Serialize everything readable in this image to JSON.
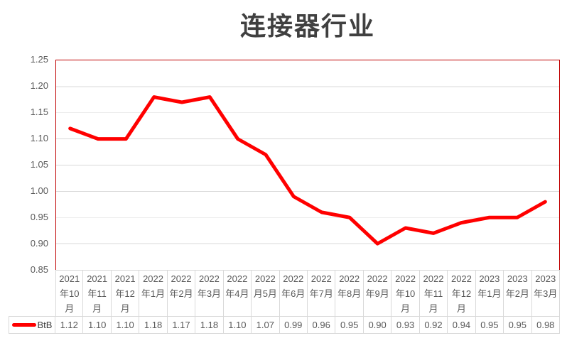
{
  "title": "连接器行业",
  "chart_data": {
    "type": "line",
    "title": "连接器行业",
    "categories": [
      "2021年10月",
      "2021年11月",
      "2021年12月",
      "2022年1月",
      "2022年2月",
      "2022年3月",
      "2022年4月",
      "2022月5月",
      "2022年6月",
      "2022年7月",
      "2022年8月",
      "2022年9月",
      "2022年10月",
      "2022年11月",
      "2022年12月",
      "2023年1月",
      "2023年2月",
      "2023年3月"
    ],
    "series": [
      {
        "name": "BtB",
        "values": [
          1.12,
          1.1,
          1.1,
          1.18,
          1.17,
          1.18,
          1.1,
          1.07,
          0.99,
          0.96,
          0.95,
          0.9,
          0.93,
          0.92,
          0.94,
          0.95,
          0.95,
          0.98
        ]
      }
    ],
    "xlabel": "",
    "ylabel": "",
    "ylim": [
      0.85,
      1.25
    ],
    "ytick_step": 0.05,
    "yticks": [
      "1.25",
      "1.20",
      "1.15",
      "1.10",
      "1.05",
      "1.00",
      "0.95",
      "0.90",
      "0.85"
    ],
    "grid": true,
    "legend_position": "data-table-left"
  },
  "data_table": {
    "legend_label": "BtB",
    "values": [
      "1.12",
      "1.10",
      "1.10",
      "1.18",
      "1.17",
      "1.18",
      "1.10",
      "1.07",
      "0.99",
      "0.96",
      "0.95",
      "0.90",
      "0.93",
      "0.92",
      "0.94",
      "0.95",
      "0.95",
      "0.98"
    ]
  },
  "colors": {
    "line": "#FF0000",
    "plot_border": "#C00000",
    "gridline": "#D9D9D9",
    "table_border": "#D9D9D9",
    "axis_text": "#595959",
    "title_text": "#404040",
    "background": "#FFFFFF"
  }
}
